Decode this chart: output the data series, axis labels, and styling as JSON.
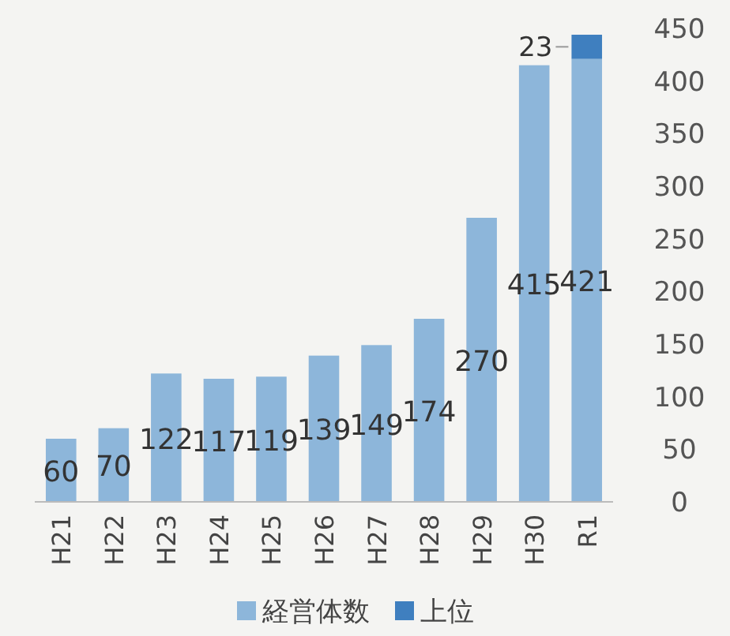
{
  "chart_data": {
    "type": "bar",
    "stacked": true,
    "categories": [
      "H21",
      "H22",
      "H23",
      "H24",
      "H25",
      "H26",
      "H27",
      "H28",
      "H29",
      "H30",
      "R1"
    ],
    "series": [
      {
        "name": "経営体数",
        "color": "#8db6da",
        "values": [
          60,
          70,
          122,
          117,
          119,
          139,
          149,
          174,
          270,
          415,
          421
        ]
      },
      {
        "name": "上位",
        "color": "#3f7fbf",
        "values": [
          null,
          null,
          null,
          null,
          null,
          null,
          null,
          null,
          null,
          null,
          23
        ]
      }
    ],
    "ylim": [
      0,
      450
    ],
    "yticks": [
      0,
      50,
      100,
      150,
      200,
      250,
      300,
      350,
      400,
      450
    ],
    "data_labels": true,
    "legend": "bottom",
    "grid": false
  }
}
